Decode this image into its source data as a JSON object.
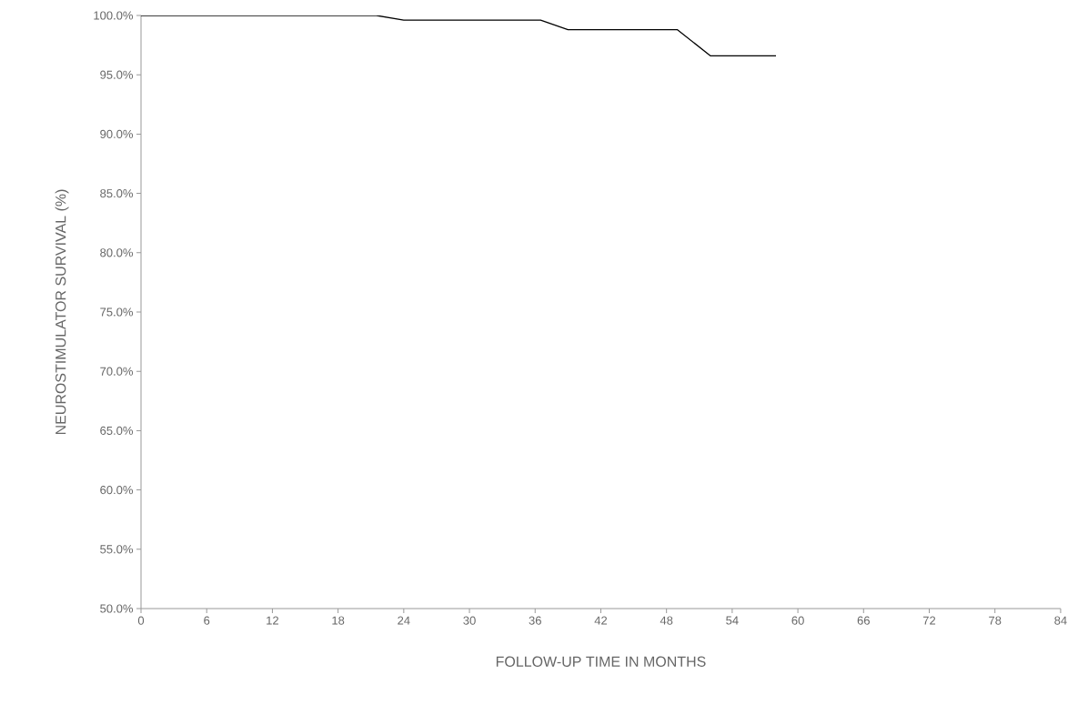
{
  "chart_data": {
    "type": "line",
    "xlabel": "FOLLOW-UP TIME IN MONTHS",
    "ylabel": "NEUROSTIMULATOR SURVIVAL (%)",
    "series": [
      {
        "color": "#000000",
        "x": [
          0,
          21.5,
          24,
          36.5,
          39,
          49,
          52,
          58
        ],
        "values": [
          100,
          100,
          99.6,
          99.6,
          98.8,
          98.8,
          96.6,
          96.6
        ]
      }
    ],
    "xlim": [
      0,
      84
    ],
    "xticks": [
      0,
      6,
      12,
      18,
      24,
      30,
      36,
      42,
      48,
      54,
      60,
      66,
      72,
      78,
      84
    ],
    "ylim": [
      50,
      100
    ],
    "yticks": [
      {
        "value": 50,
        "label": "50.0%"
      },
      {
        "value": 55,
        "label": "55.0%"
      },
      {
        "value": 60,
        "label": "60.0%"
      },
      {
        "value": 65,
        "label": "65.0%"
      },
      {
        "value": 70,
        "label": "70.0%"
      },
      {
        "value": 75,
        "label": "75.0%"
      },
      {
        "value": 80,
        "label": "80.0%"
      },
      {
        "value": 85,
        "label": "85.0%"
      },
      {
        "value": 90,
        "label": "90.0%"
      },
      {
        "value": 95,
        "label": "95.0%"
      },
      {
        "value": 100,
        "label": "100.0%"
      }
    ],
    "grid": false,
    "marker": "none",
    "line_style": "solid"
  }
}
